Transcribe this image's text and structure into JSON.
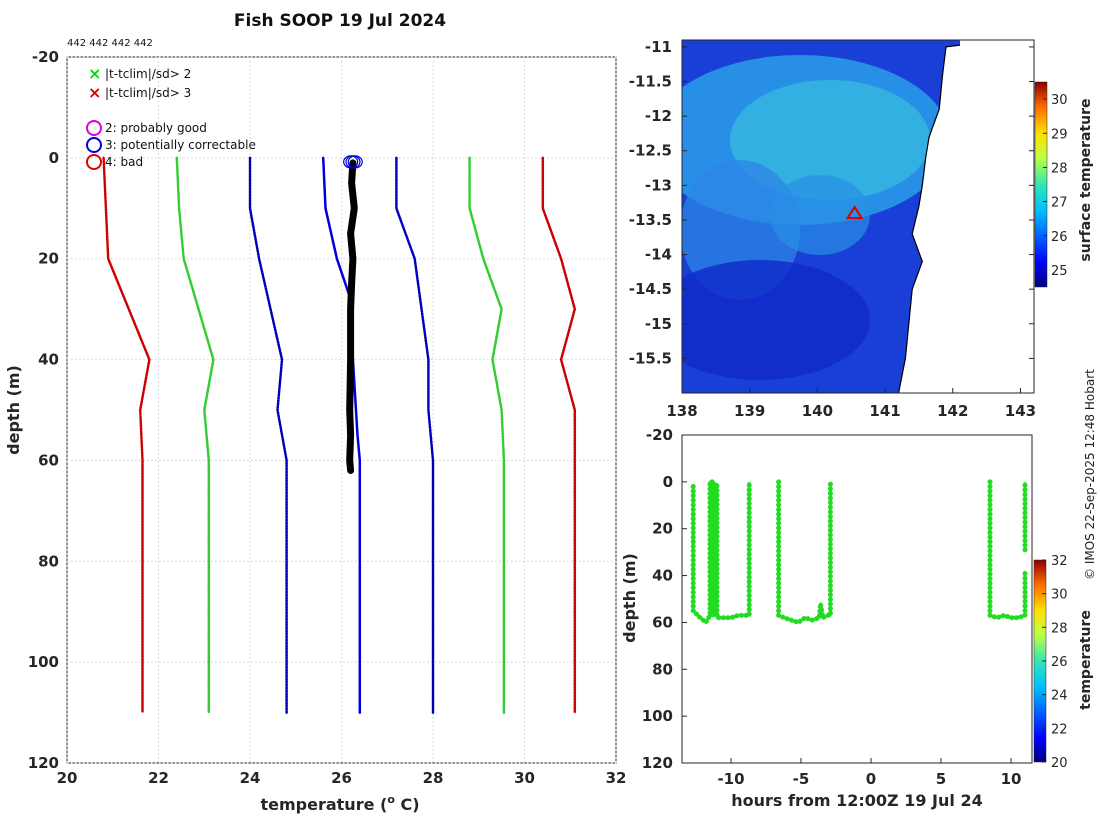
{
  "page": {
    "title": "Fish SOOP 19 Jul 2024",
    "id_text": "442 442 442 442",
    "copyright": "© IMOS 22-Sep-2025 12:48 Hobart"
  },
  "legend": {
    "items": [
      {
        "marker": "x",
        "color": "#00dd00",
        "label": "|t-tclim|/sd> 2"
      },
      {
        "marker": "x",
        "color": "#dd0000",
        "label": "|t-tclim|/sd> 3"
      },
      {
        "marker": "o",
        "color": "#dd00dd",
        "label": "2: probably good"
      },
      {
        "marker": "o",
        "color": "#0000dd",
        "label": "3: potentially correctable"
      },
      {
        "marker": "o",
        "color": "#dd0000",
        "label": "4: bad"
      }
    ]
  },
  "chart_data": [
    {
      "id": "profile",
      "type": "line",
      "xlabel": "temperature (o C)",
      "ylabel": "depth (m)",
      "xlim": [
        20,
        32
      ],
      "ylim": [
        -20,
        120
      ],
      "y_reversed": true,
      "xticks": [
        20,
        22,
        24,
        26,
        28,
        30,
        32
      ],
      "yticks": [
        -20,
        0,
        20,
        40,
        60,
        80,
        100,
        120
      ],
      "grid": true,
      "series": [
        {
          "name": "clim -3sd",
          "color": "#cc0000",
          "style": "dotted",
          "points": [
            [
              20.8,
              0
            ],
            [
              20.85,
              10
            ],
            [
              20.9,
              20
            ],
            [
              21.8,
              40
            ],
            [
              21.6,
              50
            ],
            [
              21.65,
              60
            ],
            [
              21.65,
              110
            ]
          ]
        },
        {
          "name": "clim -2sd",
          "color": "#33cc33",
          "style": "dotted",
          "points": [
            [
              22.4,
              0
            ],
            [
              22.45,
              10
            ],
            [
              22.55,
              20
            ],
            [
              23.2,
              40
            ],
            [
              23.0,
              50
            ],
            [
              23.1,
              60
            ],
            [
              23.1,
              110
            ]
          ]
        },
        {
          "name": "clim -1sd",
          "color": "#0000bb",
          "style": "dotted",
          "points": [
            [
              24.0,
              0
            ],
            [
              24.0,
              10
            ],
            [
              24.2,
              20
            ],
            [
              24.7,
              40
            ],
            [
              24.6,
              50
            ],
            [
              24.8,
              60
            ],
            [
              24.8,
              110
            ]
          ]
        },
        {
          "name": "clim +1sd",
          "color": "#0000bb",
          "style": "dotted",
          "points": [
            [
              27.2,
              0
            ],
            [
              27.2,
              10
            ],
            [
              27.6,
              20
            ],
            [
              27.9,
              40
            ],
            [
              27.9,
              50
            ],
            [
              28.0,
              60
            ],
            [
              28.0,
              110
            ]
          ]
        },
        {
          "name": "clim +2sd",
          "color": "#33cc33",
          "style": "dotted",
          "points": [
            [
              28.8,
              0
            ],
            [
              28.8,
              10
            ],
            [
              29.1,
              20
            ],
            [
              29.5,
              30
            ],
            [
              29.3,
              40
            ],
            [
              29.5,
              50
            ],
            [
              29.55,
              60
            ],
            [
              29.55,
              110
            ]
          ]
        },
        {
          "name": "clim +3sd",
          "color": "#cc0000",
          "style": "dotted",
          "points": [
            [
              30.4,
              0
            ],
            [
              30.4,
              10
            ],
            [
              30.8,
              20
            ],
            [
              31.1,
              30
            ],
            [
              30.8,
              40
            ],
            [
              31.1,
              50
            ],
            [
              31.1,
              60
            ],
            [
              31.1,
              110
            ]
          ]
        },
        {
          "name": "climatology mean",
          "color": "#0000dd",
          "style": "solid",
          "width": 2.5,
          "points": [
            [
              25.6,
              0
            ],
            [
              25.65,
              10
            ],
            [
              25.9,
              20
            ],
            [
              26.2,
              28
            ],
            [
              26.25,
              40
            ],
            [
              26.35,
              55
            ],
            [
              26.4,
              60
            ],
            [
              26.4,
              110
            ]
          ]
        },
        {
          "name": "observed profile",
          "color": "#000000",
          "style": "solid",
          "width": 7,
          "points": [
            [
              26.25,
              1
            ],
            [
              26.22,
              5
            ],
            [
              26.28,
              10
            ],
            [
              26.2,
              15
            ],
            [
              26.25,
              20
            ],
            [
              26.22,
              25
            ],
            [
              26.2,
              30
            ],
            [
              26.2,
              40
            ],
            [
              26.18,
              50
            ],
            [
              26.2,
              55
            ],
            [
              26.18,
              60
            ],
            [
              26.2,
              62
            ]
          ]
        }
      ],
      "flags": [
        {
          "type": "circle",
          "color": "#0000dd",
          "points": [
            [
              26.2,
              0.8
            ],
            [
              26.25,
              0.8
            ],
            [
              26.3,
              0.8
            ]
          ]
        }
      ]
    },
    {
      "id": "sst_map",
      "type": "heatmap",
      "xlim": [
        138,
        143.2
      ],
      "ylim": [
        -16,
        -10.9
      ],
      "xticks": [
        138,
        139,
        140,
        141,
        142,
        143
      ],
      "xtick_labels": [
        "138",
        "139",
        "140",
        "141",
        "142",
        "143"
      ],
      "yticks": [
        -11,
        -11.5,
        -12,
        -12.5,
        -13,
        -13.5,
        -14,
        -14.5,
        -15,
        -15.5
      ],
      "ytick_labels": [
        "-11",
        "-11.5",
        "-12",
        "-12.5",
        "-13",
        "-13.5",
        "-14",
        "-14.5",
        "-15",
        "-15.5"
      ],
      "colorbar": {
        "label": "surface temperature",
        "range": [
          24.5,
          30.5
        ],
        "ticks": [
          25,
          26,
          27,
          28,
          29,
          30
        ]
      },
      "coast": [
        [
          141.9,
          -11.0
        ],
        [
          141.85,
          -11.4
        ],
        [
          141.8,
          -11.9
        ],
        [
          141.65,
          -12.3
        ],
        [
          141.6,
          -12.6
        ],
        [
          141.55,
          -13.0
        ],
        [
          141.5,
          -13.3
        ],
        [
          141.4,
          -13.7
        ],
        [
          141.55,
          -14.1
        ],
        [
          141.4,
          -14.5
        ],
        [
          141.35,
          -15.0
        ],
        [
          141.3,
          -15.5
        ],
        [
          141.2,
          -16.0
        ]
      ],
      "marker": {
        "type": "triangle",
        "color": "#dd0000",
        "lon": 140.55,
        "lat": -13.4
      }
    },
    {
      "id": "time_depth",
      "type": "scatter",
      "xlabel": "hours from 12:00Z 19 Jul 24",
      "ylabel": "depth (m)",
      "xlim": [
        -13.5,
        11.5
      ],
      "ylim": [
        -20,
        120
      ],
      "y_reversed": true,
      "xticks": [
        -10,
        -5,
        0,
        5,
        10
      ],
      "yticks": [
        -20,
        0,
        20,
        40,
        60,
        80,
        100,
        120
      ],
      "colorbar": {
        "label": "temperature",
        "range": [
          20,
          32
        ],
        "ticks": [
          20,
          22,
          24,
          26,
          28,
          30,
          32
        ]
      },
      "point_color": "#22dd22",
      "segments": [
        [
          [
            -12.7,
            2
          ],
          [
            -12.7,
            55
          ],
          [
            -12.2,
            58
          ],
          [
            -11.8,
            60
          ],
          [
            -11.5,
            57
          ],
          [
            -11.5,
            0
          ],
          [
            -11.3,
            0
          ],
          [
            -11.3,
            57
          ],
          [
            -11.15,
            57
          ],
          [
            -11.15,
            1
          ],
          [
            -11.0,
            1
          ],
          [
            -11.0,
            58
          ],
          [
            -10.5,
            58
          ],
          [
            -10,
            58
          ],
          [
            -9.5,
            57
          ],
          [
            -9,
            57
          ],
          [
            -8.7,
            57
          ],
          [
            -8.7,
            0
          ]
        ],
        [
          [
            -6.6,
            0
          ],
          [
            -6.6,
            57
          ],
          [
            -6.2,
            58
          ],
          [
            -5.7,
            59
          ],
          [
            -5.2,
            60
          ],
          [
            -4.7,
            58
          ],
          [
            -4.2,
            59
          ],
          [
            -3.7,
            58
          ],
          [
            -3.6,
            52
          ],
          [
            -3.45,
            58
          ],
          [
            -3.1,
            57
          ],
          [
            -2.9,
            57
          ],
          [
            -2.9,
            0
          ]
        ],
        [
          [
            8.5,
            0
          ],
          [
            8.5,
            57
          ],
          [
            9.0,
            58
          ],
          [
            9.5,
            57
          ],
          [
            10.0,
            58
          ],
          [
            10.5,
            58
          ],
          [
            11.0,
            57
          ],
          [
            11.0,
            38
          ]
        ],
        [
          [
            11.0,
            29
          ],
          [
            11.0,
            0
          ]
        ]
      ]
    }
  ]
}
